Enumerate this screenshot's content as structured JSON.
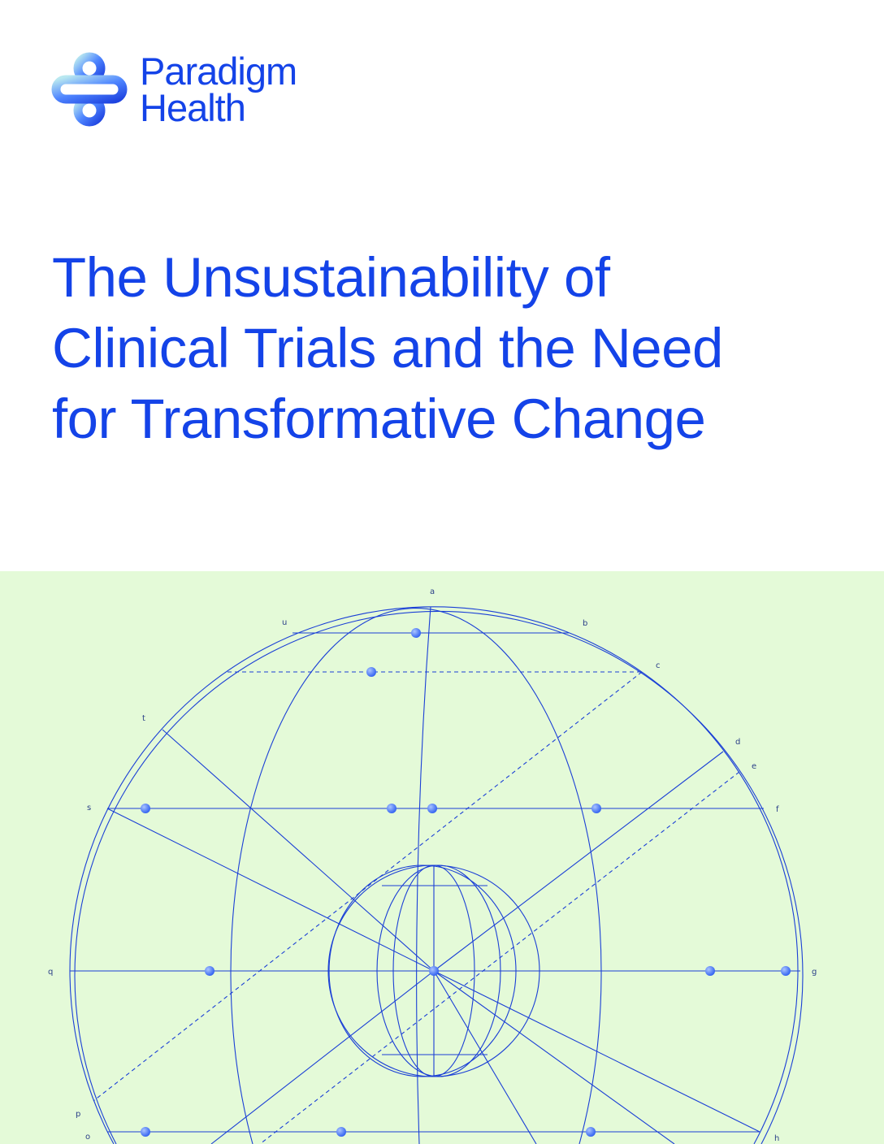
{
  "brand": {
    "name_line1": "Paradigm",
    "name_line2": "Health",
    "color": "#1443e8"
  },
  "title": {
    "line1": "The Unsustainability of",
    "line2": "Clinical Trials and the Need",
    "line3": "for Transformative Change"
  },
  "illustration": {
    "background": "#e4fad8",
    "stroke": "#1a3fd6",
    "labels": [
      "a",
      "b",
      "c",
      "d",
      "e",
      "f",
      "g",
      "h",
      "o",
      "p",
      "q",
      "s",
      "t",
      "u"
    ]
  }
}
